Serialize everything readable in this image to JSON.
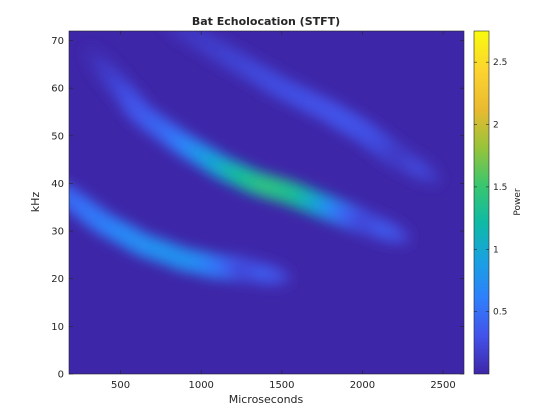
{
  "chart_data": {
    "type": "heatmap",
    "title": "Bat Echolocation (STFT)",
    "xlabel": "Microseconds",
    "ylabel": "kHz",
    "xlim": [
      180,
      2630
    ],
    "ylim": [
      0,
      72
    ],
    "x_ticks": [
      500,
      1000,
      1500,
      2000,
      2500
    ],
    "y_ticks": [
      0,
      10,
      20,
      30,
      40,
      50,
      60,
      70
    ],
    "colorbar": {
      "label": "Power",
      "range": [
        0.0,
        2.75
      ],
      "ticks": [
        0.5,
        1,
        1.5,
        2,
        2.5
      ],
      "colormap": "parula",
      "colors": [
        "#3e26a8",
        "#4352e9",
        "#2f7ffc",
        "#19a1e2",
        "#0ebaa5",
        "#39c66f",
        "#97c43a",
        "#e9ba30",
        "#fcd230",
        "#f9fb0e"
      ]
    },
    "background_power": 0.0,
    "ridges": [
      {
        "name": "",
        "points": [
          [
            180,
            37,
            0.7
          ],
          [
            400,
            31.5,
            1.0
          ],
          [
            650,
            27,
            1.3
          ],
          [
            900,
            24,
            1.45
          ],
          [
            1100,
            22.5,
            1.4
          ],
          [
            1250,
            22,
            1.0
          ],
          [
            1400,
            21,
            0.3
          ]
        ]
      },
      {
        "name": "",
        "points": [
          [
            400,
            64,
            0.1
          ],
          [
            650,
            54,
            0.55
          ],
          [
            900,
            48,
            0.9
          ],
          [
            1150,
            43,
            1.7
          ],
          [
            1350,
            40,
            2.4
          ],
          [
            1550,
            38,
            2.72
          ],
          [
            1700,
            36,
            2.55
          ],
          [
            1850,
            34,
            1.8
          ],
          [
            2000,
            32,
            0.9
          ],
          [
            2150,
            30,
            0.3
          ]
        ]
      },
      {
        "name": "",
        "points": [
          [
            900,
            72,
            0.15
          ],
          [
            1200,
            66,
            0.3
          ],
          [
            1500,
            60,
            0.45
          ],
          [
            1800,
            55,
            0.55
          ],
          [
            2000,
            51,
            0.6
          ],
          [
            2200,
            46,
            0.5
          ],
          [
            2350,
            43,
            0.2
          ]
        ]
      }
    ]
  }
}
